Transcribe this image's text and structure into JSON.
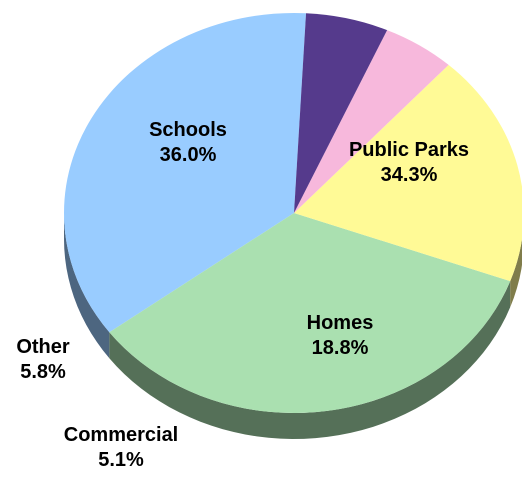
{
  "chart_data": {
    "type": "pie",
    "style": "3d",
    "title": "",
    "slices": [
      {
        "label": "Schools",
        "value": 36.0,
        "value_label": "36.0%",
        "color": "#99ccff"
      },
      {
        "label": "Public Parks",
        "value": 34.3,
        "value_label": "34.3%",
        "color": "#aae0b0"
      },
      {
        "label": "Homes",
        "value": 18.8,
        "value_label": "18.8%",
        "color": "#fffa96"
      },
      {
        "label": "Commercial",
        "value": 5.1,
        "value_label": "5.1%",
        "color": "#f7b8dc"
      },
      {
        "label": "Other",
        "value": 5.8,
        "value_label": "5.8%",
        "color": "#553a8c"
      }
    ],
    "legend": "none"
  }
}
